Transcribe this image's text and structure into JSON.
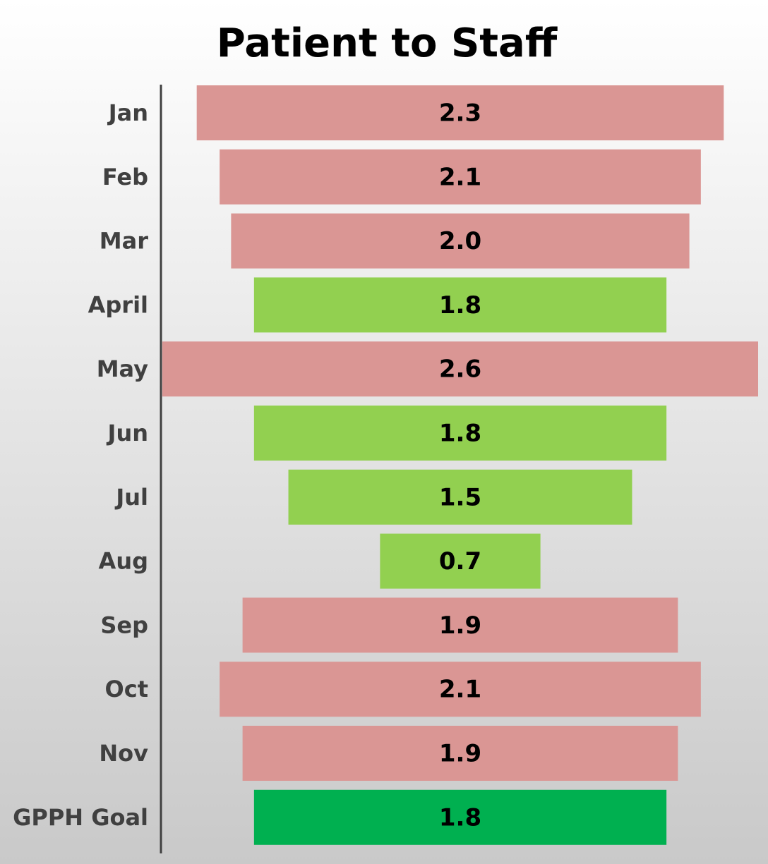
{
  "chart_data": {
    "type": "funnel",
    "title": "Patient to Staff",
    "categories": [
      "Jan",
      "Feb",
      "Mar",
      "April",
      "May",
      "Jun",
      "Jul",
      "Aug",
      "Sep",
      "Oct",
      "Nov",
      "GPPH Goal"
    ],
    "values": [
      2.3,
      2.1,
      2.0,
      1.8,
      2.6,
      1.8,
      1.5,
      0.7,
      1.9,
      2.1,
      1.9,
      1.8
    ],
    "value_labels": [
      "2.3",
      "2.1",
      "2.0",
      "1.8",
      "2.6",
      "1.8",
      "1.5",
      "0.7",
      "1.9",
      "2.1",
      "1.9",
      "1.8"
    ],
    "colors": [
      "#da9694",
      "#da9694",
      "#da9694",
      "#92d050",
      "#da9694",
      "#92d050",
      "#92d050",
      "#92d050",
      "#da9694",
      "#da9694",
      "#da9694",
      "#00b050"
    ]
  }
}
